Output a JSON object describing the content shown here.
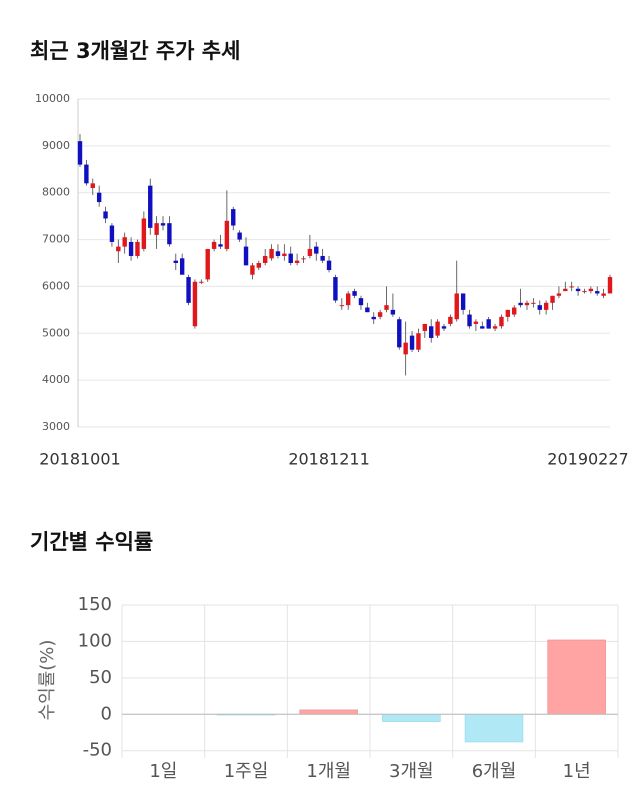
{
  "chart_data": [
    {
      "type": "candlestick",
      "title": "최근 3개월간 주가 추세",
      "categories": [
        "20181001",
        null,
        null,
        null,
        null,
        null,
        null,
        null,
        null,
        null,
        null,
        null,
        null,
        null,
        null,
        null,
        null,
        null,
        null,
        null,
        null,
        null,
        null,
        null,
        null,
        null,
        null,
        null,
        null,
        null,
        null,
        null,
        null,
        null,
        null,
        null,
        null,
        null,
        null,
        "20181211",
        null,
        null,
        null,
        null,
        null,
        null,
        null,
        null,
        null,
        null,
        null,
        null,
        null,
        null,
        null,
        null,
        null,
        null,
        null,
        null,
        null,
        null,
        null,
        null,
        null,
        null,
        null,
        null,
        null,
        null,
        null,
        null,
        null,
        null,
        null,
        null,
        null,
        null,
        null,
        null,
        null,
        null,
        null,
        "20190227"
      ],
      "open": [
        9100,
        8600,
        8100,
        8000,
        7600,
        7300,
        6750,
        6850,
        6950,
        6650,
        6800,
        8150,
        7100,
        7350,
        7350,
        6550,
        6600,
        6200,
        5150,
        6100,
        6150,
        6800,
        6900,
        6800,
        7650,
        7150,
        6850,
        6250,
        6400,
        6500,
        6600,
        6750,
        6650,
        6700,
        6500,
        6600,
        6650,
        6850,
        6650,
        6550,
        6200,
        5600,
        5600,
        5900,
        5750,
        5550,
        5350,
        5350,
        5500,
        5500,
        5300,
        4550,
        4950,
        4650,
        5050,
        5150,
        4950,
        5150,
        5200,
        5300,
        5850,
        5400,
        5200,
        5150,
        5300,
        5100,
        5150,
        5350,
        5400,
        5650,
        5600,
        5650,
        5600,
        5500,
        5650,
        5800,
        5900,
        6000,
        5950,
        5900,
        5900,
        5900,
        5800,
        5850
      ],
      "high": [
        9250,
        8700,
        8300,
        8150,
        7700,
        7350,
        7000,
        7150,
        7050,
        7000,
        7600,
        8300,
        7500,
        7500,
        7500,
        6700,
        6700,
        6250,
        6150,
        6150,
        6800,
        7000,
        7100,
        8050,
        7700,
        7200,
        7050,
        6500,
        6550,
        6800,
        6900,
        6900,
        6900,
        6850,
        6700,
        6650,
        7100,
        6950,
        6800,
        6650,
        6250,
        5750,
        5900,
        5950,
        5800,
        5650,
        5450,
        5500,
        6000,
        5850,
        5350,
        5250,
        5050,
        5100,
        5200,
        5300,
        5300,
        5200,
        5400,
        6550,
        5850,
        5500,
        5300,
        5250,
        5350,
        5200,
        5400,
        5500,
        5600,
        5950,
        5700,
        5750,
        5700,
        5700,
        5800,
        6000,
        6100,
        6100,
        6000,
        5950,
        6000,
        6000,
        5950,
        6250
      ],
      "low": [
        8550,
        8150,
        7950,
        7700,
        7350,
        6850,
        6500,
        6700,
        6550,
        6600,
        6750,
        7100,
        6800,
        7200,
        6850,
        6350,
        6250,
        5600,
        5100,
        6050,
        6100,
        6750,
        6800,
        6750,
        7200,
        6950,
        6450,
        6150,
        6350,
        6450,
        6550,
        6600,
        6550,
        6450,
        6450,
        6500,
        6600,
        6550,
        6500,
        6300,
        5650,
        5500,
        5500,
        5750,
        5500,
        5450,
        5200,
        5300,
        5450,
        5350,
        4650,
        4100,
        4600,
        4600,
        4900,
        4800,
        4900,
        5050,
        5150,
        5250,
        5400,
        5100,
        5050,
        5100,
        5100,
        5050,
        5100,
        5250,
        5350,
        5550,
        5500,
        5550,
        5400,
        5400,
        5500,
        5750,
        5900,
        5900,
        5800,
        5850,
        5850,
        5800,
        5750,
        5850
      ],
      "close": [
        8600,
        8200,
        8200,
        7800,
        7450,
        6950,
        6850,
        7050,
        6650,
        6950,
        7450,
        7250,
        7350,
        7300,
        6900,
        6500,
        6250,
        5650,
        6100,
        6100,
        6800,
        6950,
        6850,
        7400,
        7300,
        7000,
        6450,
        6450,
        6500,
        6650,
        6800,
        6650,
        6700,
        6500,
        6550,
        6600,
        6800,
        6700,
        6550,
        6350,
        5700,
        5600,
        5850,
        5800,
        5600,
        5450,
        5300,
        5450,
        5600,
        5400,
        4700,
        4800,
        4650,
        5000,
        5200,
        4900,
        5250,
        5100,
        5350,
        5850,
        5500,
        5150,
        5250,
        5100,
        5100,
        5150,
        5350,
        5500,
        5550,
        5600,
        5650,
        5650,
        5500,
        5650,
        5800,
        5850,
        5950,
        6000,
        5900,
        5900,
        5950,
        5850,
        5850,
        6200
      ],
      "up_color": "#e0171b",
      "down_color": "#1010c0",
      "ylim": [
        3000,
        10000
      ],
      "yticks": [
        3000,
        4000,
        5000,
        6000,
        7000,
        8000,
        9000,
        10000
      ],
      "grid": true
    },
    {
      "type": "bar",
      "title": "기간별 수익률",
      "ylabel": "수익률(%)",
      "categories": [
        "1일",
        "1주일",
        "1개월",
        "3개월",
        "6개월",
        "1년"
      ],
      "values": [
        0,
        -1,
        6,
        -10,
        -38,
        102
      ],
      "positive_color": "#ffa3a3",
      "negative_color": "#b0e8f5",
      "ylim": [
        -60,
        150
      ],
      "yticks": [
        -50,
        0,
        50,
        100,
        150
      ],
      "grid": true
    }
  ]
}
